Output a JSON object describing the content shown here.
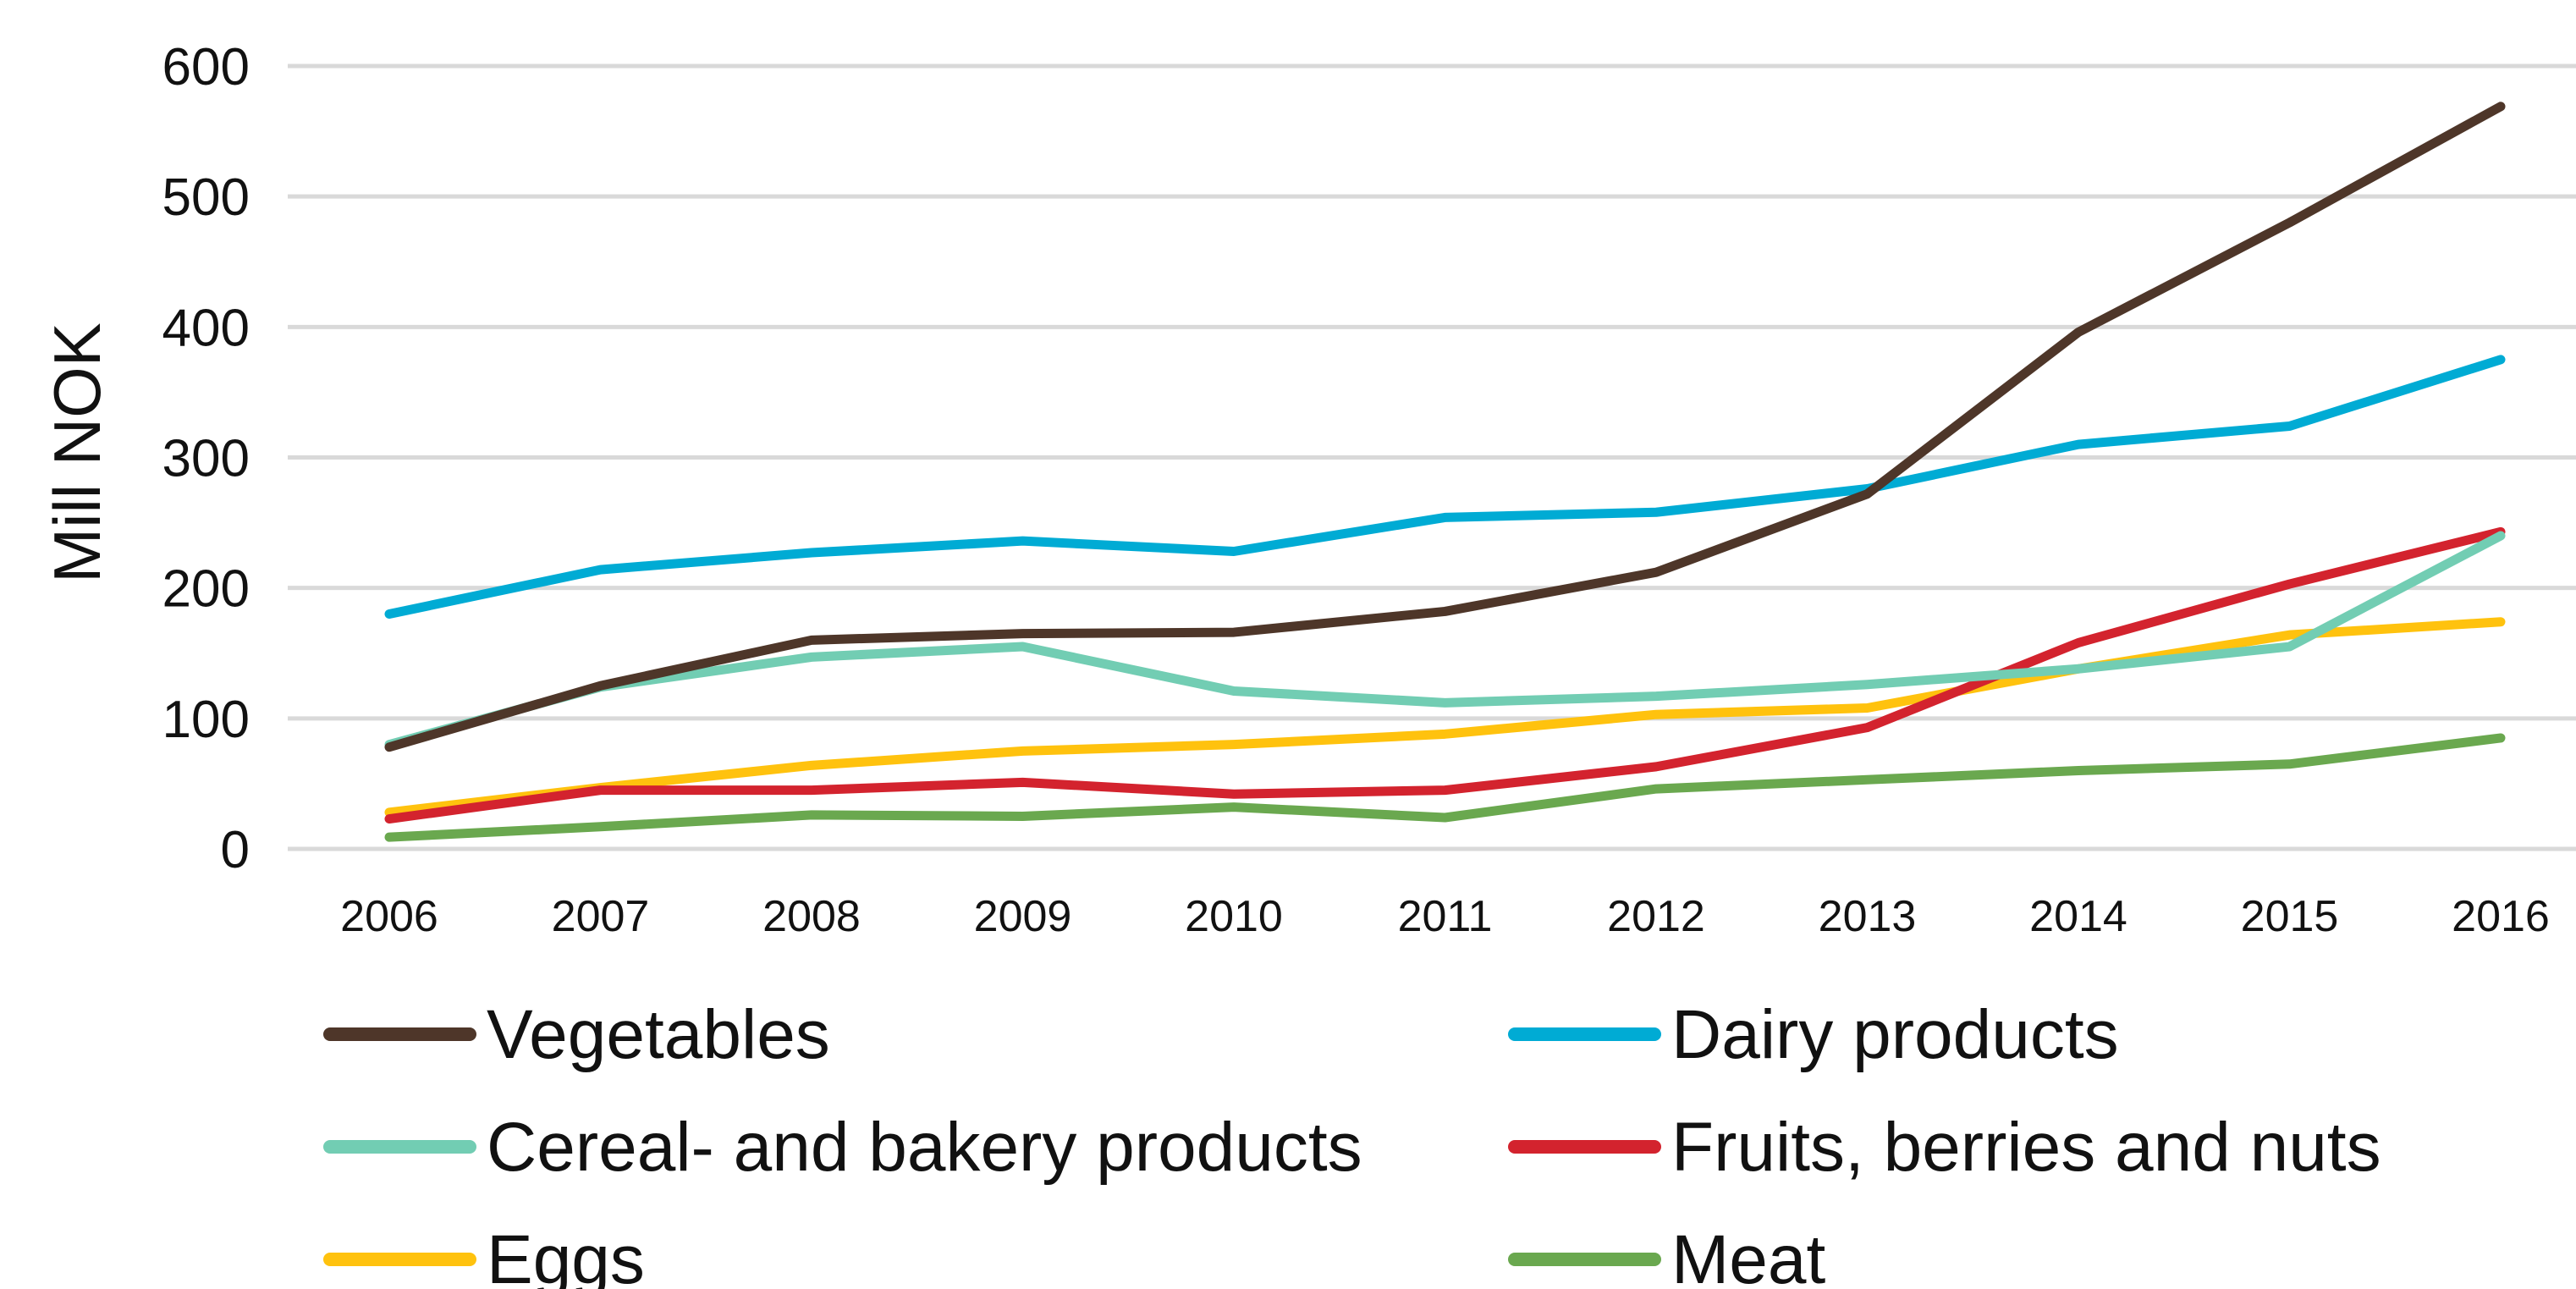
{
  "chart_data": {
    "type": "line",
    "title": "",
    "xlabel": "",
    "ylabel": "Mill NOK",
    "ylim": [
      0,
      600
    ],
    "yticks": [
      0,
      100,
      200,
      300,
      400,
      500,
      600
    ],
    "grid": "horizontal",
    "legend_position": "bottom",
    "categories": [
      "2006",
      "2007",
      "2008",
      "2009",
      "2010",
      "2011",
      "2012",
      "2013",
      "2014",
      "2015",
      "2016"
    ],
    "series": [
      {
        "name": "Vegetables",
        "color": "#4e3629",
        "values": [
          78,
          125,
          160,
          165,
          166,
          182,
          212,
          272,
          396,
          480,
          569
        ]
      },
      {
        "name": "Dairy products",
        "color": "#00abd4",
        "values": [
          180,
          214,
          227,
          236,
          228,
          254,
          258,
          276,
          310,
          324,
          375
        ]
      },
      {
        "name": "Cereal- and bakery products",
        "color": "#72cdb3",
        "values": [
          80,
          124,
          147,
          155,
          121,
          112,
          117,
          126,
          138,
          155,
          240
        ]
      },
      {
        "name": "Fruits, berries and nuts",
        "color": "#d3232e",
        "values": [
          23,
          45,
          45,
          51,
          42,
          45,
          63,
          93,
          158,
          203,
          243
        ]
      },
      {
        "name": "Eggs",
        "color": "#ffc20e",
        "values": [
          28,
          47,
          64,
          75,
          80,
          88,
          103,
          108,
          138,
          164,
          174
        ]
      },
      {
        "name": "Meat",
        "color": "#6aa84f",
        "values": [
          9,
          17,
          26,
          25,
          32,
          24,
          46,
          53,
          60,
          65,
          85
        ]
      }
    ]
  }
}
